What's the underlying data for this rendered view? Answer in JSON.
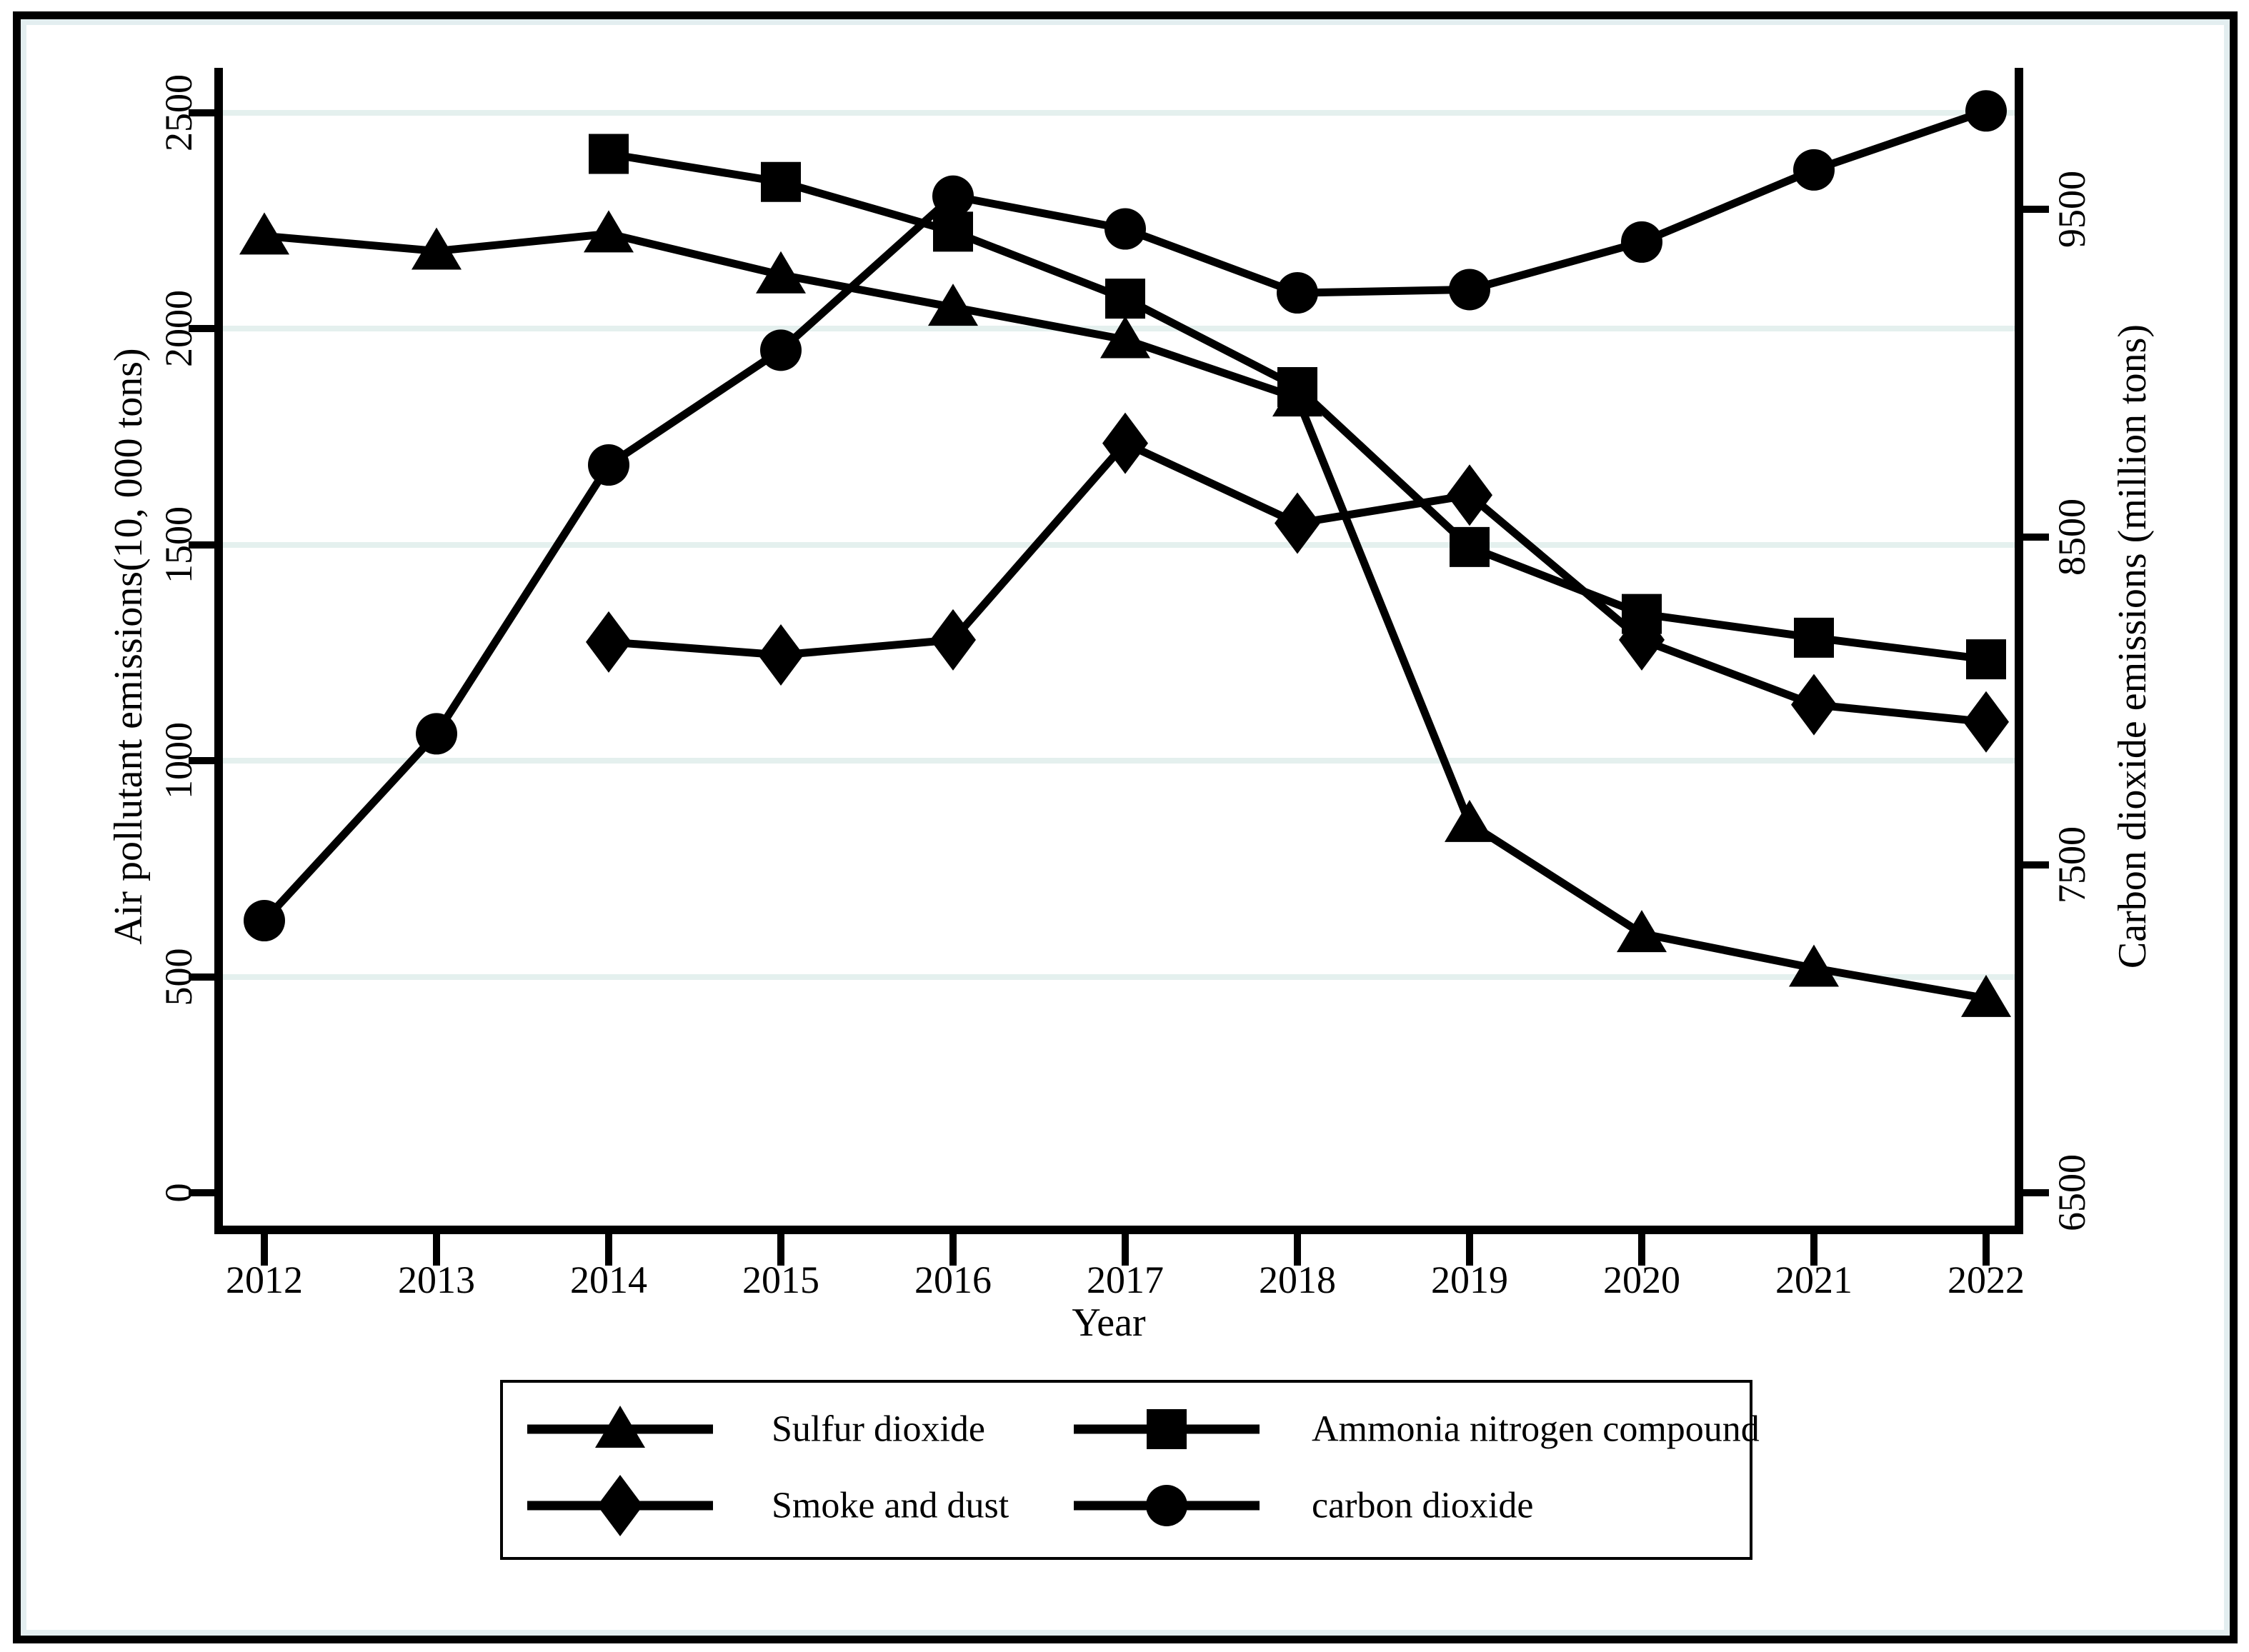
{
  "chart_data": {
    "type": "line",
    "x": [
      "2012",
      "2013",
      "2014",
      "2015",
      "2016",
      "2017",
      "2018",
      "2019",
      "2020",
      "2021",
      "2022"
    ],
    "series": [
      {
        "name": "Sulfur dioxide",
        "marker": "triangle",
        "axis": "left",
        "values": [
          2215,
          2180,
          2220,
          2125,
          2050,
          1975,
          1840,
          855,
          600,
          520,
          450
        ]
      },
      {
        "name": "Ammonia nitrogen compound",
        "marker": "square",
        "axis": "left",
        "values": [
          null,
          null,
          2405,
          2340,
          2225,
          2070,
          1865,
          1495,
          1340,
          1285,
          1235
        ]
      },
      {
        "name": "Smoke and dust",
        "marker": "diamond",
        "axis": "left",
        "values": [
          null,
          null,
          1275,
          1245,
          1280,
          1735,
          1550,
          1615,
          1280,
          1130,
          1090
        ]
      },
      {
        "name": "carbon dioxide",
        "marker": "circle",
        "axis": "right",
        "values": [
          7330,
          7900,
          8720,
          9070,
          9540,
          9440,
          9245,
          9255,
          9400,
          9620,
          9800
        ]
      }
    ],
    "left_axis": {
      "label": "Air pollutant emissions(10, 000 tons)",
      "ticks": [
        0,
        500,
        1000,
        1500,
        2000,
        2500
      ],
      "range": [
        0,
        2500
      ]
    },
    "right_axis": {
      "label": "Carbon dioxide emissions (million tons)",
      "ticks": [
        6500,
        7500,
        8500,
        9500
      ],
      "range": [
        6500,
        9850
      ]
    },
    "x_axis": {
      "label": "Year"
    },
    "grid": "horizontal",
    "legend_position": "bottom-center",
    "colors": {
      "line": "#000000",
      "grid": "#e4f0ee"
    }
  },
  "legend": {
    "rows": 2,
    "items": [
      {
        "marker": "triangle",
        "label": "Sulfur dioxide"
      },
      {
        "marker": "square",
        "label": "Ammonia nitrogen compound"
      },
      {
        "marker": "diamond",
        "label": "Smoke and dust"
      },
      {
        "marker": "circle",
        "label": "carbon dioxide"
      }
    ]
  }
}
